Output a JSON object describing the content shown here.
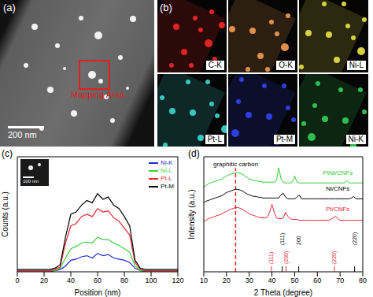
{
  "panels": {
    "a": {
      "label": "(a)",
      "scale_bar": "200 nm",
      "annotation": "Mapping Area"
    },
    "b": {
      "label": "(b)",
      "maps": [
        {
          "label": "C-K",
          "color": "#e02424"
        },
        {
          "label": "O-K",
          "color": "#e0904a"
        },
        {
          "label": "Ni-L",
          "color": "#d8d040"
        },
        {
          "label": "Pt-L",
          "color": "#36c8c0"
        },
        {
          "label": "Pt-M",
          "color": "#2d3ee0"
        },
        {
          "label": "Ni-K",
          "color": "#2fbf4f"
        }
      ]
    }
  },
  "chart_data": [
    {
      "type": "line",
      "panel": "(c)",
      "xlabel": "Position (nm)",
      "ylabel": "Counts (a.u.)",
      "inset_scale_bar": "100 nm",
      "x": [
        0,
        4,
        8,
        12,
        16,
        20,
        24,
        28,
        32,
        36,
        40,
        44,
        48,
        52,
        56,
        60,
        64,
        68,
        72,
        76,
        80,
        84,
        88,
        92,
        96,
        100,
        104,
        108,
        112,
        116,
        120
      ],
      "series": [
        {
          "name": "Ni-K",
          "color": "#1f2bd6",
          "values": [
            0,
            0,
            0,
            0,
            0,
            0,
            0,
            1,
            2,
            5,
            10,
            11,
            13,
            14,
            12,
            16,
            14,
            15,
            12,
            11,
            10,
            8,
            3,
            1,
            0,
            0,
            0,
            0,
            0,
            0,
            0
          ]
        },
        {
          "name": "Ni-L",
          "color": "#3fd03f",
          "values": [
            1,
            1,
            1,
            1,
            1,
            1,
            1,
            1,
            3,
            12,
            20,
            22,
            25,
            26,
            25,
            30,
            28,
            28,
            25,
            23,
            20,
            17,
            5,
            1,
            1,
            1,
            1,
            1,
            1,
            1,
            1
          ]
        },
        {
          "name": "Pt-L",
          "color": "#e8262b",
          "values": [
            1,
            1,
            1,
            1,
            1,
            1,
            1,
            2,
            4,
            25,
            40,
            42,
            48,
            50,
            48,
            55,
            52,
            53,
            47,
            44,
            38,
            32,
            8,
            2,
            1,
            1,
            1,
            1,
            1,
            1,
            1
          ]
        },
        {
          "name": "Pt-M",
          "color": "#000000",
          "values": [
            2,
            2,
            2,
            2,
            2,
            2,
            2,
            3,
            6,
            30,
            50,
            52,
            58,
            62,
            60,
            68,
            63,
            65,
            58,
            55,
            48,
            40,
            10,
            3,
            2,
            2,
            2,
            2,
            2,
            2,
            2
          ]
        }
      ],
      "xlim": [
        0,
        120
      ],
      "xticks": [
        0,
        20,
        40,
        60,
        80,
        100,
        120
      ],
      "ylim": [
        0,
        100
      ],
      "tick_labels": "x",
      "legend": "upper right",
      "grid": false
    },
    {
      "type": "line",
      "panel": "(d)",
      "xlabel": "2 Theta (degree)",
      "ylabel": "Intensity (a.u.)",
      "x": [
        10,
        11,
        12,
        13,
        14,
        15,
        16,
        17,
        18,
        19,
        20,
        21,
        22,
        23,
        24,
        25,
        26,
        27,
        28,
        29,
        30,
        31,
        32,
        33,
        34,
        35,
        36,
        37,
        38,
        39,
        40,
        41,
        42,
        43,
        44,
        45,
        46,
        47,
        48,
        49,
        50,
        51,
        52,
        53,
        54,
        55,
        56,
        57,
        58,
        59,
        60,
        61,
        62,
        63,
        64,
        65,
        66,
        67,
        68,
        69,
        70,
        71,
        72,
        73,
        74,
        75,
        76,
        77,
        78,
        79,
        80
      ],
      "series": [
        {
          "name": "PtNi/CNFs",
          "color": "#2ecc2e",
          "values": [
            62,
            64,
            66,
            67,
            68,
            69,
            70,
            71,
            72,
            74,
            76,
            77,
            78,
            79,
            80,
            80,
            79,
            78,
            76,
            74,
            72,
            71,
            70,
            70,
            69,
            69,
            68,
            68,
            68,
            68,
            68,
            68,
            70,
            86,
            72,
            68,
            67,
            67,
            67,
            68,
            76,
            68,
            67,
            67,
            67,
            67,
            67,
            67,
            67,
            67,
            67,
            67,
            67,
            67,
            67,
            67,
            67,
            67,
            67,
            67,
            67,
            67,
            67,
            70,
            67,
            67,
            67,
            67,
            67,
            67,
            67
          ]
        },
        {
          "name": "Ni/CNFs",
          "color": "#000000",
          "values": [
            42,
            44,
            45,
            46,
            47,
            48,
            49,
            50,
            51,
            53,
            55,
            56,
            57,
            58,
            59,
            59,
            58,
            57,
            55,
            53,
            52,
            51,
            50,
            50,
            49,
            49,
            48,
            48,
            48,
            48,
            48,
            48,
            48,
            48,
            52,
            54,
            49,
            47,
            47,
            47,
            47,
            49,
            52,
            47,
            47,
            47,
            47,
            47,
            47,
            47,
            47,
            47,
            47,
            47,
            47,
            47,
            47,
            47,
            47,
            47,
            47,
            47,
            47,
            47,
            47,
            48,
            50,
            47,
            47,
            47,
            47
          ]
        },
        {
          "name": "Pt/CNFs",
          "color": "#e8262b",
          "values": [
            18,
            20,
            22,
            23,
            24,
            25,
            26,
            27,
            28,
            30,
            31,
            33,
            34,
            35,
            36,
            36,
            35,
            34,
            32,
            30,
            28,
            27,
            26,
            25,
            24,
            23,
            23,
            23,
            24,
            30,
            40,
            30,
            23,
            22,
            22,
            23,
            30,
            25,
            22,
            21,
            21,
            21,
            20,
            20,
            20,
            20,
            20,
            20,
            20,
            20,
            20,
            20,
            20,
            20,
            20,
            20,
            21,
            23,
            25,
            22,
            20,
            20,
            20,
            20,
            20,
            20,
            20,
            20,
            20,
            20,
            20
          ]
        }
      ],
      "annotations": [
        {
          "text": "graphitic carbon",
          "x": 24,
          "color": "#e8262b"
        }
      ],
      "reference_peaks": [
        {
          "x": 39.8,
          "label": "(111)",
          "color": "#e8262b"
        },
        {
          "x": 44.5,
          "label": "(111)",
          "color": "#000000"
        },
        {
          "x": 46.2,
          "label": "(200)",
          "color": "#e8262b"
        },
        {
          "x": 51.8,
          "label": "200",
          "color": "#000000"
        },
        {
          "x": 67.5,
          "label": "(220)",
          "color": "#e8262b"
        },
        {
          "x": 76.4,
          "label": "(220)",
          "color": "#000000"
        }
      ],
      "xlim": [
        10,
        80
      ],
      "xticks": [
        10,
        20,
        30,
        40,
        50,
        60,
        70,
        80
      ],
      "ylim": [
        -45,
        100
      ],
      "tick_labels": "x",
      "grid": false
    }
  ]
}
